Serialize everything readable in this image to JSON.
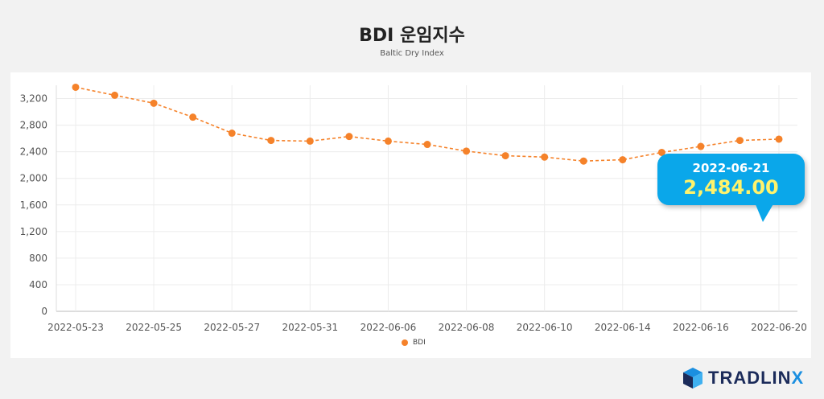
{
  "header": {
    "title": "BDI 운임지수",
    "subtitle": "Baltic Dry Index"
  },
  "legend": {
    "label": "BDI",
    "color": "#f5822a"
  },
  "tooltip": {
    "date": "2022-06-21",
    "value": "2,484.00",
    "bg_color": "#0aa7ea",
    "value_color": "#fff36b"
  },
  "logo": {
    "text_main": "TRADLIN",
    "text_accent": "X",
    "icon": "cube-logo-icon"
  },
  "chart_data": {
    "type": "line",
    "title": "BDI 운임지수",
    "subtitle": "Baltic Dry Index",
    "xlabel": "",
    "ylabel": "",
    "ylim": [
      0,
      3400
    ],
    "yticks": [
      0,
      400,
      800,
      1200,
      1600,
      2000,
      2400,
      2800,
      3200
    ],
    "ytick_labels": [
      "0",
      "400",
      "800",
      "1,200",
      "1,600",
      "2,000",
      "2,400",
      "2,800",
      "3,200"
    ],
    "xtick_labels": [
      "2022-05-23",
      "2022-05-25",
      "2022-05-27",
      "2022-05-31",
      "2022-06-06",
      "2022-06-08",
      "2022-06-10",
      "2022-06-14",
      "2022-06-16",
      "2022-06-20"
    ],
    "grid": true,
    "legend_position": "bottom",
    "series": [
      {
        "name": "BDI",
        "color": "#f5822a",
        "values": [
          3370,
          3250,
          3130,
          2920,
          2680,
          2570,
          2560,
          2630,
          2560,
          2510,
          2410,
          2340,
          2320,
          2260,
          2280,
          2390,
          2480,
          2570,
          2590
        ]
      }
    ]
  }
}
